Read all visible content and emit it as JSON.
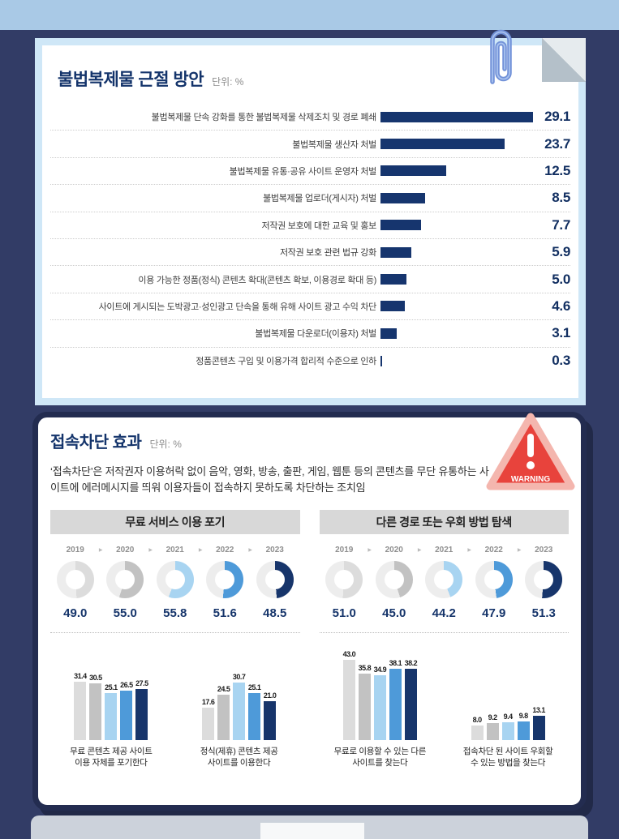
{
  "colors": {
    "background": "#323c66",
    "top_strip": "#a9c9e6",
    "navy": "#16356e",
    "card1_border": "#cfe7f7",
    "card2_border": "#232c50",
    "warning_red": "#e8433c",
    "warning_border": "#f4b6ae",
    "header_bg": "#d8d8d8",
    "donut_rest": "#ededed",
    "year_colors": [
      "#dcdcdc",
      "#c2c2c2",
      "#a8d4f1",
      "#4e9ad9",
      "#17356b"
    ]
  },
  "top_card": {
    "title": "불법복제물 근절 방안",
    "unit_label": "단위: %",
    "items": [
      {
        "label": "불법복제물 단속 강화를 통한 불법복제물 삭제조치 및 경로 폐쇄",
        "value": 29.1
      },
      {
        "label": "불법복제물 생산자 처벌",
        "value": 23.7
      },
      {
        "label": "불법복제물 유통·공유 사이트 운영자 처벌",
        "value": 12.5
      },
      {
        "label": "불법복제물 업로더(게시자) 처벌",
        "value": 8.5
      },
      {
        "label": "저작권 보호에 대한 교육 및 홍보",
        "value": 7.7
      },
      {
        "label": "저작권 보호 관련 법규 강화",
        "value": 5.9
      },
      {
        "label": "이용 가능한 정품(정식) 콘텐츠 확대(콘텐츠 확보, 이용경로 확대 등)",
        "value": 5.0
      },
      {
        "label": "사이트에 게시되는 도박광고·성인광고 단속을 통해 유해 사이트 광고 수익 차단",
        "value": 4.6
      },
      {
        "label": "불법복제물 다운로더(이용자) 처벌",
        "value": 3.1
      },
      {
        "label": "정품콘텐츠 구입 및 이용가격 합리적 수준으로 인하",
        "value": 0.3
      }
    ]
  },
  "bottom_card": {
    "title": "접속차단 효과",
    "unit_label": "단위: %",
    "warning_label": "WARNING",
    "description": "‘접속차단’은 저작권자 이용허락 없이 음악, 영화, 방송, 출판, 게임, 웹툰 등의 콘텐츠를 무단 유통하는 사이트에 에러메시지를 띄워 이용자들이 접속하지 못하도록 차단하는 조치임",
    "years": [
      "2019",
      "2020",
      "2021",
      "2022",
      "2023"
    ],
    "sections": [
      {
        "header": "무료 서비스 이용 포기",
        "donut_values": [
          49.0,
          55.0,
          55.8,
          51.6,
          48.5
        ],
        "bar_groups": [
          {
            "caption_lines": [
              "무료 콘텐츠 제공 사이트",
              "이용 자체를 포기한다"
            ],
            "values": [
              31.4,
              30.5,
              25.1,
              26.5,
              27.5
            ]
          },
          {
            "caption_lines": [
              "정식(제휴) 콘텐츠 제공",
              "사이트를 이용한다"
            ],
            "values": [
              17.6,
              24.5,
              30.7,
              25.1,
              21.0
            ]
          }
        ]
      },
      {
        "header": "다른 경로 또는 우회 방법 탐색",
        "donut_values": [
          51.0,
          45.0,
          44.2,
          47.9,
          51.3
        ],
        "bar_groups": [
          {
            "caption_lines": [
              "무료로 이용할 수 있는 다른",
              "사이트를 찾는다"
            ],
            "values": [
              43.0,
              35.8,
              34.9,
              38.1,
              38.2
            ]
          },
          {
            "caption_lines": [
              "접속차단 된 사이트 우회할",
              "수 있는 방법을 찾는다"
            ],
            "values": [
              8.0,
              9.2,
              9.4,
              9.8,
              13.1
            ]
          }
        ]
      }
    ]
  },
  "chart_data": [
    {
      "type": "bar",
      "orientation": "horizontal",
      "title": "불법복제물 근절 방안",
      "unit": "%",
      "categories": [
        "불법복제물 단속 강화를 통한 불법복제물 삭제조치 및 경로 폐쇄",
        "불법복제물 생산자 처벌",
        "불법복제물 유통·공유 사이트 운영자 처벌",
        "불법복제물 업로더(게시자) 처벌",
        "저작권 보호에 대한 교육 및 홍보",
        "저작권 보호 관련 법규 강화",
        "이용 가능한 정품(정식) 콘텐츠 확대(콘텐츠 확보, 이용경로 확대 등)",
        "사이트에 게시되는 도박광고·성인광고 단속을 통해 유해 사이트 광고 수익 차단",
        "불법복제물 다운로더(이용자) 처벌",
        "정품콘텐츠 구입 및 이용가격 합리적 수준으로 인하"
      ],
      "values": [
        29.1,
        23.7,
        12.5,
        8.5,
        7.7,
        5.9,
        5.0,
        4.6,
        3.1,
        0.3
      ],
      "xlim": [
        0,
        30
      ],
      "bar_color": "#16356e",
      "grid": false,
      "value_labels": true
    },
    {
      "type": "pie",
      "subtype": "donut-series-by-year",
      "title": "접속차단 효과 — 무료 서비스 이용 포기",
      "unit": "%",
      "categories": [
        "2019",
        "2020",
        "2021",
        "2022",
        "2023"
      ],
      "values": [
        49.0,
        55.0,
        55.8,
        51.6,
        48.5
      ],
      "colors": [
        "#dcdcdc",
        "#c2c2c2",
        "#a8d4f1",
        "#4e9ad9",
        "#17356b"
      ]
    },
    {
      "type": "pie",
      "subtype": "donut-series-by-year",
      "title": "접속차단 효과 — 다른 경로 또는 우회 방법 탐색",
      "unit": "%",
      "categories": [
        "2019",
        "2020",
        "2021",
        "2022",
        "2023"
      ],
      "values": [
        51.0,
        45.0,
        44.2,
        47.9,
        51.3
      ],
      "colors": [
        "#dcdcdc",
        "#c2c2c2",
        "#a8d4f1",
        "#4e9ad9",
        "#17356b"
      ]
    },
    {
      "type": "bar",
      "title": "무료 콘텐츠 제공 사이트 이용 자체를 포기한다",
      "unit": "%",
      "categories": [
        "2019",
        "2020",
        "2021",
        "2022",
        "2023"
      ],
      "values": [
        31.4,
        30.5,
        25.1,
        26.5,
        27.5
      ]
    },
    {
      "type": "bar",
      "title": "정식(제휴) 콘텐츠 제공 사이트를 이용한다",
      "unit": "%",
      "categories": [
        "2019",
        "2020",
        "2021",
        "2022",
        "2023"
      ],
      "values": [
        17.6,
        24.5,
        30.7,
        25.1,
        21.0
      ]
    },
    {
      "type": "bar",
      "title": "무료로 이용할 수 있는 다른 사이트를 찾는다",
      "unit": "%",
      "categories": [
        "2019",
        "2020",
        "2021",
        "2022",
        "2023"
      ],
      "values": [
        43.0,
        35.8,
        34.9,
        38.1,
        38.2
      ]
    },
    {
      "type": "bar",
      "title": "접속차단 된 사이트 우회할 수 있는 방법을 찾는다",
      "unit": "%",
      "categories": [
        "2019",
        "2020",
        "2021",
        "2022",
        "2023"
      ],
      "values": [
        8.0,
        9.2,
        9.4,
        9.8,
        13.1
      ]
    }
  ]
}
